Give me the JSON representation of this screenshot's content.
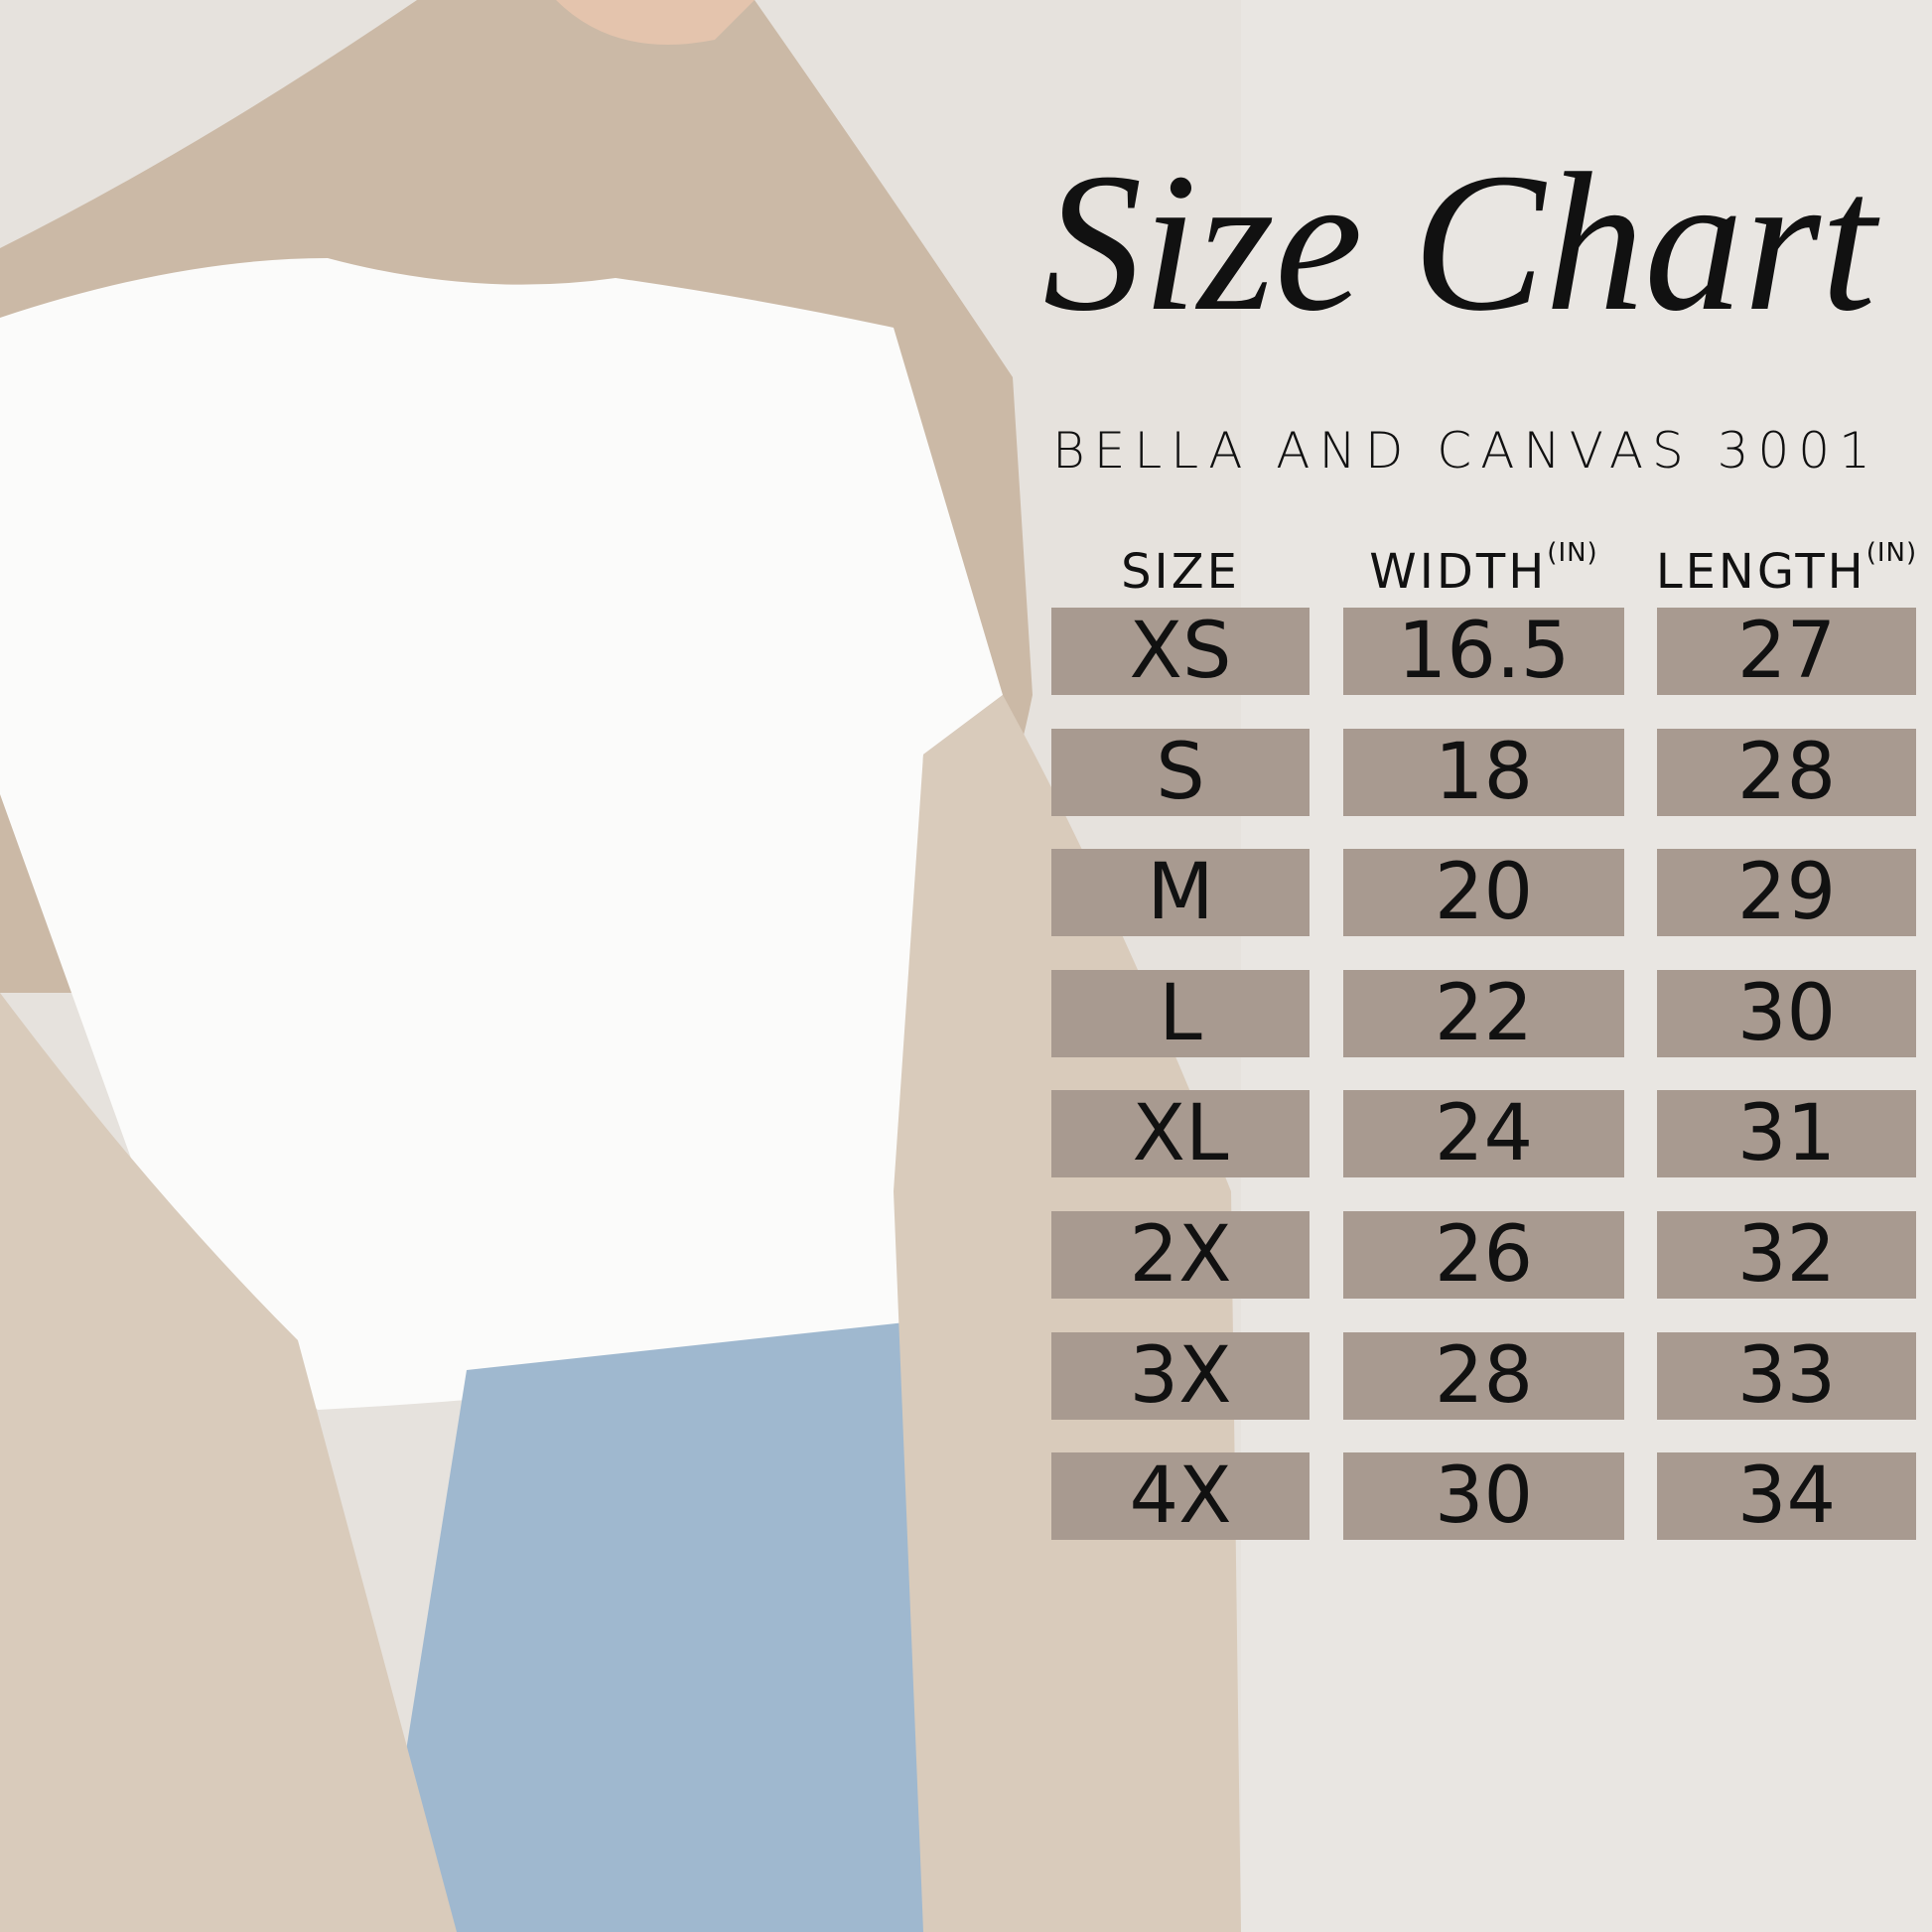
{
  "title": "Size Chart",
  "subtitle": "BELLA AND CANVAS 3001",
  "table": {
    "columns": [
      {
        "label": "SIZE"
      },
      {
        "label": "WIDTH",
        "unit": "(IN)"
      },
      {
        "label": "LENGTH",
        "unit": "(IN)"
      }
    ],
    "rows": [
      [
        "XS",
        16.5,
        27
      ],
      [
        "S",
        18,
        28
      ],
      [
        "M",
        20,
        29
      ],
      [
        "L",
        22,
        30
      ],
      [
        "XL",
        24,
        31
      ],
      [
        "2X",
        26,
        32
      ],
      [
        "3X",
        28,
        33
      ],
      [
        "4X",
        30,
        34
      ]
    ]
  }
}
